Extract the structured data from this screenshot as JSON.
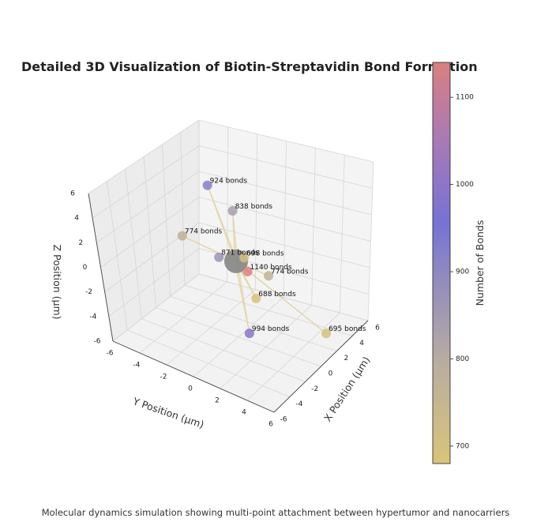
{
  "chart_data": {
    "type": "scatter3d",
    "title": "Detailed 3D Visualization of Biotin-Streptavidin Bond Formation",
    "caption": "Molecular dynamics simulation showing multi-point attachment between hypertumor and nanocarriers",
    "xlabel": "X Position (μm)",
    "ylabel": "Y Position (μm)",
    "zlabel": "Z Position (μm)",
    "xlim": [
      -6,
      6
    ],
    "ylim": [
      -6,
      6
    ],
    "zlim": [
      -6,
      6
    ],
    "xticks": [
      -6,
      -4,
      -2,
      0,
      2,
      4,
      6
    ],
    "yticks": [
      -6,
      -4,
      -2,
      0,
      2,
      4,
      6
    ],
    "zticks": [
      -6,
      -4,
      -2,
      0,
      2,
      4,
      6
    ],
    "grid": true,
    "center": {
      "x": 0,
      "y": 0,
      "z": 0
    },
    "points": [
      {
        "label": "871 bonds",
        "bonds": 871,
        "x": 1.5,
        "y": -4.5,
        "z": 3.6
      },
      {
        "label": "924 bonds",
        "bonds": 924,
        "x": -3.2,
        "y": 2.3,
        "z": 3.6
      },
      {
        "label": "838 bonds",
        "bonds": 838,
        "x": -1.8,
        "y": 2.8,
        "z": 1.8
      },
      {
        "label": "774 bonds",
        "bonds": 774,
        "x": -5.5,
        "y": 3.0,
        "z": -1.5
      },
      {
        "label": "1140 bonds",
        "bonds": 1140,
        "x": 0.5,
        "y": 0.5,
        "z": -0.9
      },
      {
        "label": "688 bonds",
        "bonds": 688,
        "x": 2.5,
        "y": -2.0,
        "z": -0.8
      },
      {
        "label": "994 bonds",
        "bonds": 994,
        "x": 4.0,
        "y": -5.5,
        "z": -0.8
      },
      {
        "label": "774 bonds",
        "bonds": 774,
        "x": 1.0,
        "y": 2.2,
        "z": -2.0
      },
      {
        "label": "698 bonds",
        "bonds": 698,
        "x": -2.0,
        "y": 4.5,
        "z": -2.8
      },
      {
        "label": "695 bonds",
        "bonds": 695,
        "x": 5.5,
        "y": 1.5,
        "z": -4.5
      }
    ],
    "colorbar": {
      "label": "Number of Bonds",
      "min": 680,
      "max": 1140,
      "ticks": [
        700,
        800,
        900,
        1000,
        1100
      ],
      "colors": [
        "#d9c47a",
        "#b9ad9f",
        "#8a85c4",
        "#7672d4",
        "#a879b7",
        "#d88080"
      ]
    },
    "center_color": "#8a8a8a",
    "bond_color": "#e0cf9a"
  }
}
